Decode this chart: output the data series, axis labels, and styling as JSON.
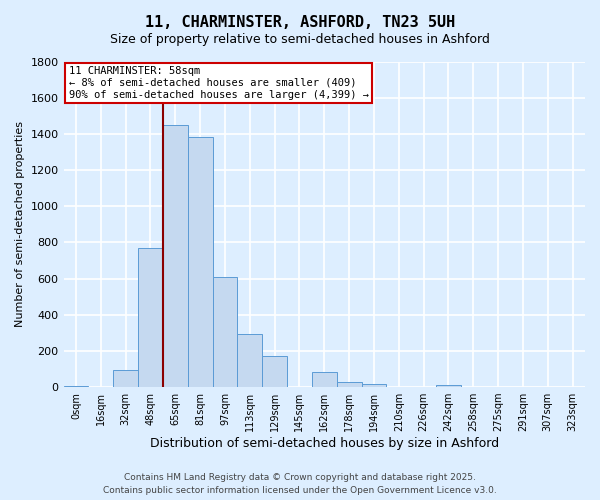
{
  "title": "11, CHARMINSTER, ASHFORD, TN23 5UH",
  "subtitle": "Size of property relative to semi-detached houses in Ashford",
  "xlabel": "Distribution of semi-detached houses by size in Ashford",
  "ylabel": "Number of semi-detached properties",
  "bar_labels": [
    "0sqm",
    "16sqm",
    "32sqm",
    "48sqm",
    "65sqm",
    "81sqm",
    "97sqm",
    "113sqm",
    "129sqm",
    "145sqm",
    "162sqm",
    "178sqm",
    "194sqm",
    "210sqm",
    "226sqm",
    "242sqm",
    "258sqm",
    "275sqm",
    "291sqm",
    "307sqm",
    "323sqm"
  ],
  "bar_values": [
    5,
    0,
    95,
    770,
    1450,
    1380,
    610,
    295,
    170,
    0,
    85,
    30,
    15,
    0,
    0,
    10,
    0,
    0,
    0,
    0,
    0
  ],
  "bar_color": "#c5d9f0",
  "bar_edge_color": "#5b9bd5",
  "fig_bg_color": "#ddeeff",
  "plot_bg_color": "#ddeeff",
  "grid_color": "#ffffff",
  "ylim": [
    0,
    1800
  ],
  "yticks": [
    0,
    200,
    400,
    600,
    800,
    1000,
    1200,
    1400,
    1600,
    1800
  ],
  "vline_color": "#8b0000",
  "vline_x": 3.5,
  "annotation_title": "11 CHARMINSTER: 58sqm",
  "annotation_line1": "← 8% of semi-detached houses are smaller (409)",
  "annotation_line2": "90% of semi-detached houses are larger (4,399) →",
  "annotation_box_color": "#ffffff",
  "annotation_box_edge": "#cc0000",
  "title_fontsize": 11,
  "subtitle_fontsize": 9,
  "xlabel_fontsize": 9,
  "ylabel_fontsize": 8,
  "xtick_fontsize": 7,
  "ytick_fontsize": 8,
  "annotation_fontsize": 7.5,
  "footer_line1": "Contains HM Land Registry data © Crown copyright and database right 2025.",
  "footer_line2": "Contains public sector information licensed under the Open Government Licence v3.0."
}
